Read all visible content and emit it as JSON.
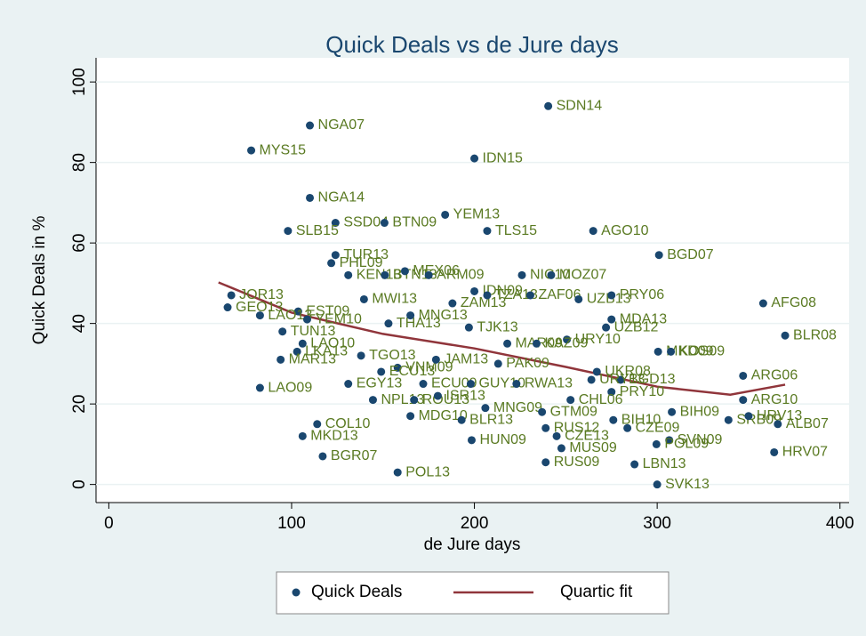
{
  "chart_data": {
    "type": "scatter",
    "title": "Quick Deals vs de Jure days",
    "x_label": "de Jure days",
    "y_label": "Quick Deals in %",
    "xlim": [
      -7,
      405
    ],
    "ylim": [
      -4.5,
      106
    ],
    "xticks": [
      0,
      100,
      200,
      300,
      400
    ],
    "yticks": [
      0,
      20,
      40,
      60,
      80,
      100
    ],
    "grid": true,
    "series": [
      {
        "name": "Quick Deals",
        "color": "#1a476f",
        "labels": [
          "SDN14",
          "NGA07",
          "MYS15",
          "IDN15",
          "NGA14",
          "SSD04",
          "BTN09",
          "YEM13",
          "SLB15",
          "TLS15",
          "AGO10",
          "BGD07",
          "TUR13",
          "PHL09",
          "KEN13",
          "BTN13",
          "MEX06",
          "ARM09",
          "NIC10",
          "MOZ07",
          "IDN09",
          "ZAM13",
          "TZA13",
          "ZAF06",
          "UZB13",
          "PRY06",
          "MWI13",
          "AFG08",
          "JOR13",
          "GEO13",
          "EST09",
          "LAO13",
          "YEM10",
          "TJK13",
          "MDA13",
          "UZB12",
          "URY10",
          "BLR08",
          "TUN13",
          "LAO10",
          "LKA13",
          "MAR13",
          "LAO09",
          "MKD09",
          "KOS09",
          "ARG06",
          "BGD13",
          "ARG10",
          "PRY10",
          "BIH09",
          "SRB09",
          "HRV13",
          "ALB07",
          "CHL06",
          "HRV07",
          "SVK13",
          "LBN13",
          "RUS09",
          "MUS09",
          "SVN09",
          "POL09",
          "CZE09",
          "HUN09",
          "COL10",
          "MKD13",
          "BGR07",
          "POL13",
          "CZE13",
          "RUS12",
          "BIH10",
          "THA13",
          "MNG13",
          "VNM09",
          "EGY13",
          "ECU09",
          "GUY10",
          "NPL13",
          "ROU13",
          "ISR13",
          "MNG09",
          "MDG10",
          "BLR13",
          "RWA13",
          "PAK09",
          "MAR09",
          "KAZ09",
          "UKR08",
          "URY13",
          "ECU13",
          "TGO13",
          "JAM13",
          "GTM09"
        ],
        "x": [
          240.4,
          110,
          77.9,
          200,
          110,
          124,
          150.8,
          184,
          98,
          207,
          265,
          301,
          124,
          121.7,
          131,
          151,
          162,
          175,
          226,
          242,
          200,
          188,
          207,
          230.6,
          257,
          275,
          139.6,
          358,
          67,
          65,
          103.6,
          82.7,
          108.5,
          197,
          275,
          272,
          250.6,
          370,
          95,
          106,
          103,
          94,
          82.7,
          300.5,
          307.5,
          347,
          280,
          347,
          275,
          308,
          339,
          350,
          366,
          252.6,
          364,
          300,
          287.6,
          239,
          247.6,
          306.6,
          299.6,
          283.7,
          198.5,
          114,
          106,
          117,
          158,
          245,
          239,
          276,
          153,
          165,
          158,
          131,
          172,
          198,
          144.5,
          167,
          180,
          206,
          165,
          193,
          223,
          213,
          218,
          234,
          267,
          264,
          149,
          138,
          179,
          237
        ],
        "values": [
          94,
          89.2,
          83,
          81,
          71.2,
          65,
          65,
          67,
          63,
          63,
          63,
          57,
          57,
          55,
          52,
          52,
          53,
          52,
          52,
          52,
          48,
          45,
          47,
          47,
          46,
          47,
          46,
          45,
          47,
          44,
          43,
          42,
          41,
          39,
          41,
          39,
          36,
          37,
          38,
          35,
          33,
          31,
          24,
          33,
          33,
          27,
          26,
          21,
          23,
          18,
          16,
          17,
          15,
          21,
          8,
          0,
          5,
          5.5,
          9,
          11,
          10,
          14,
          11,
          15,
          12,
          7,
          3,
          12,
          14,
          16,
          40,
          42,
          29,
          25,
          25,
          25,
          21,
          21,
          22,
          19,
          17,
          16,
          25,
          30,
          35,
          35,
          28,
          26,
          28,
          32,
          31,
          18
        ]
      },
      {
        "name": "Quartic fit",
        "color": "#90353b",
        "x": [
          60,
          100,
          150,
          200,
          250,
          300,
          340,
          370
        ],
        "values": [
          50.2,
          42.7,
          37.4,
          33.8,
          29.2,
          24.3,
          22.3,
          24.8
        ]
      }
    ]
  }
}
